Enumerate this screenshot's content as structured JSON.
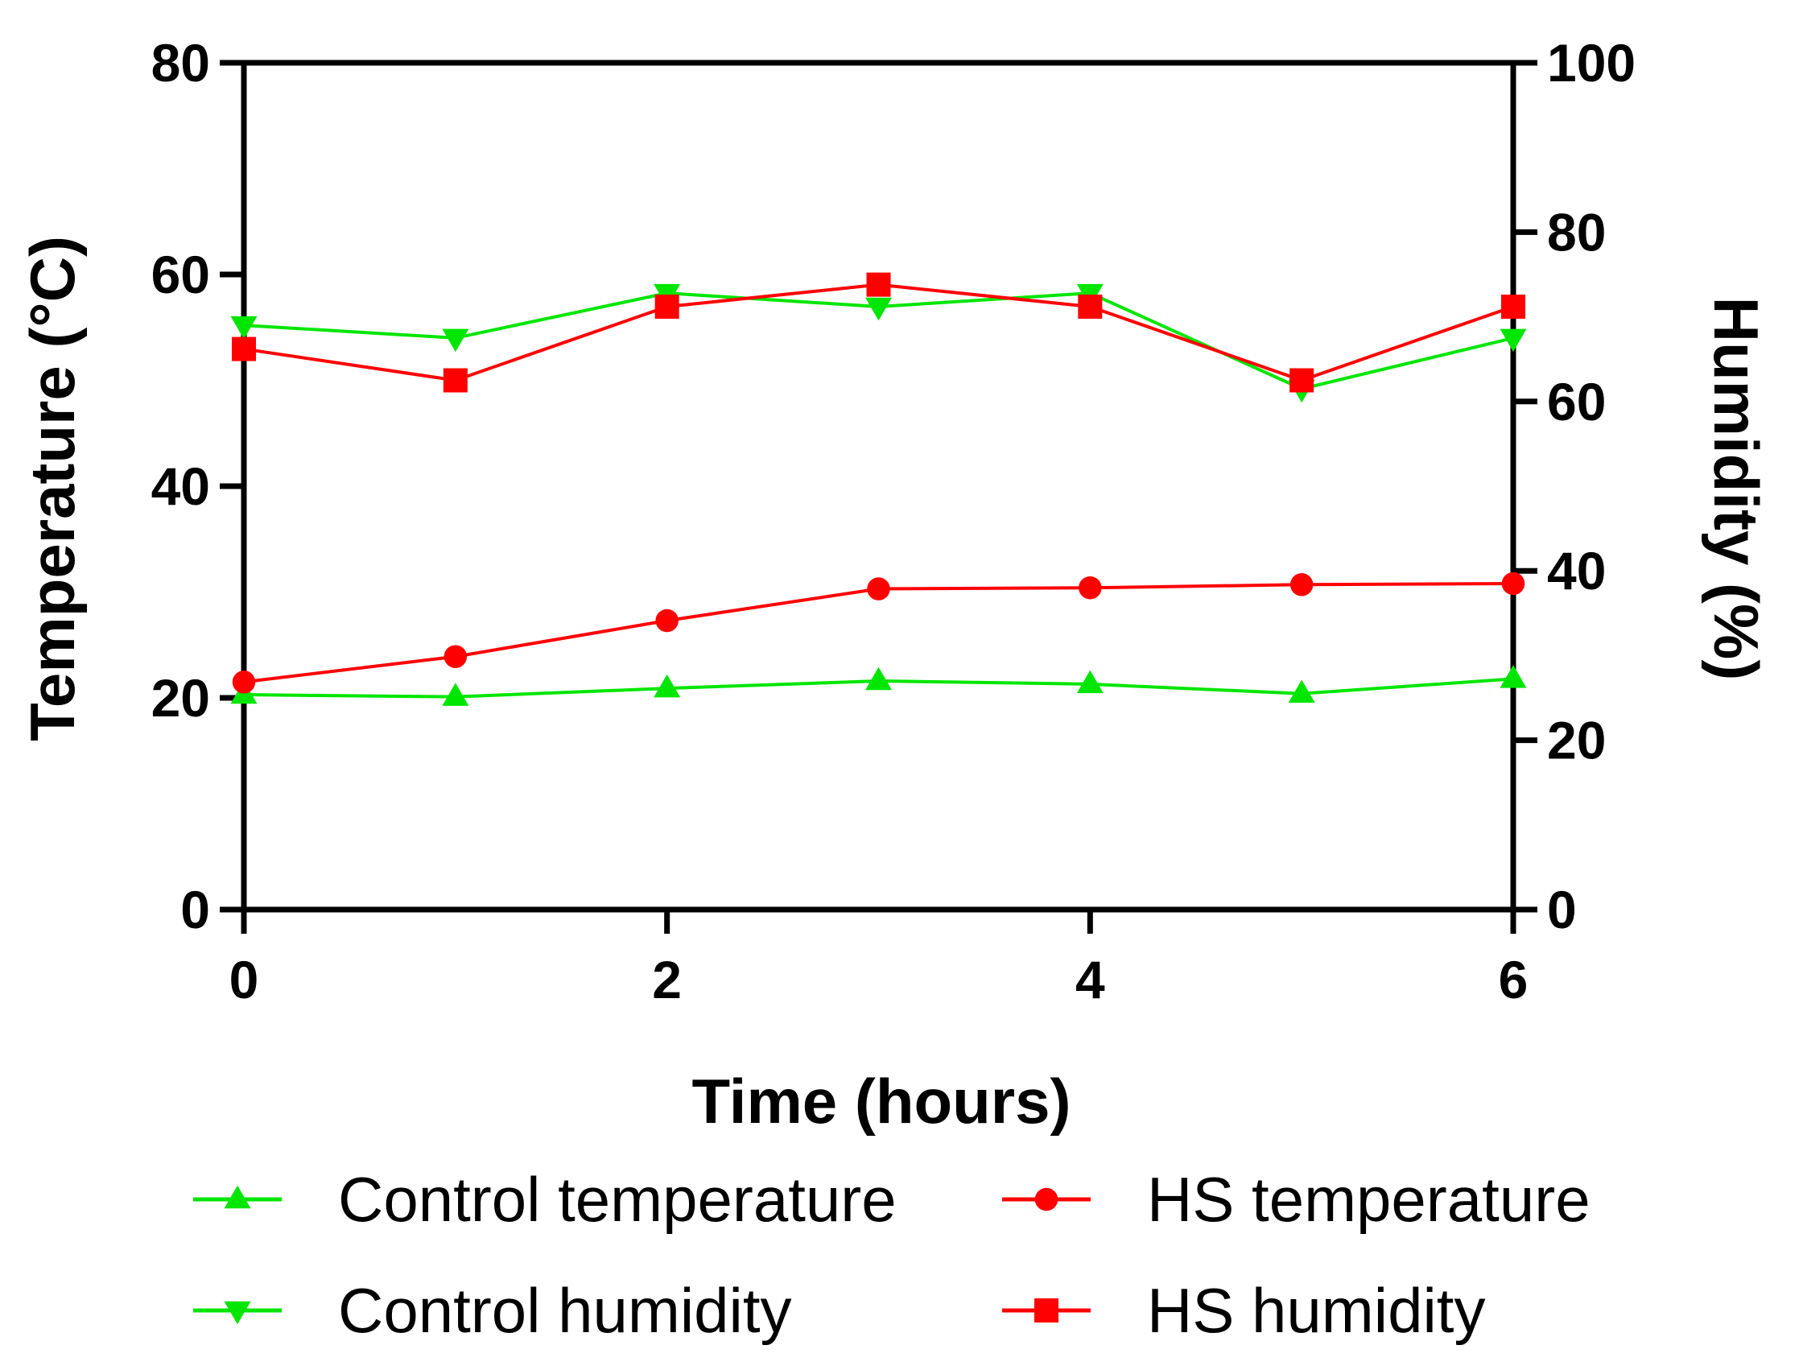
{
  "chart_data": {
    "type": "line",
    "title": "",
    "xlabel": "Time (hours)",
    "ylabel": "Temperature (°C)",
    "y2label": "Humidity (%)",
    "x": [
      0,
      1,
      2,
      3,
      4,
      5,
      6
    ],
    "xlim": [
      0,
      6
    ],
    "xticks": [
      0,
      2,
      4,
      6
    ],
    "ylim": [
      0,
      80
    ],
    "yticks": [
      0,
      20,
      40,
      60,
      80
    ],
    "y2lim": [
      0,
      100
    ],
    "y2ticks": [
      0,
      20,
      40,
      60,
      80,
      100
    ],
    "grid": false,
    "legend_position": "bottom",
    "series": [
      {
        "name": "Control temperature",
        "axis": "left",
        "color": "#00e600",
        "marker": "triangle-up",
        "values": [
          20.3,
          20.1,
          20.9,
          21.6,
          21.3,
          20.4,
          21.8
        ]
      },
      {
        "name": "HS temperature",
        "axis": "left",
        "color": "#ff0000",
        "marker": "circle",
        "values": [
          21.5,
          23.9,
          27.3,
          30.3,
          30.4,
          30.7,
          30.8
        ]
      },
      {
        "name": "Control humidity",
        "axis": "right",
        "color": "#00e600",
        "marker": "triangle-down",
        "values": [
          69,
          67.5,
          72.8,
          71.2,
          72.8,
          61.5,
          67.5
        ]
      },
      {
        "name": "HS humidity",
        "axis": "right",
        "color": "#ff0000",
        "marker": "square",
        "values": [
          66.2,
          62.5,
          71.2,
          73.8,
          71.2,
          62.5,
          71.2
        ]
      }
    ],
    "legend_order": [
      "Control temperature",
      "HS temperature",
      "Control humidity",
      "HS humidity"
    ]
  }
}
